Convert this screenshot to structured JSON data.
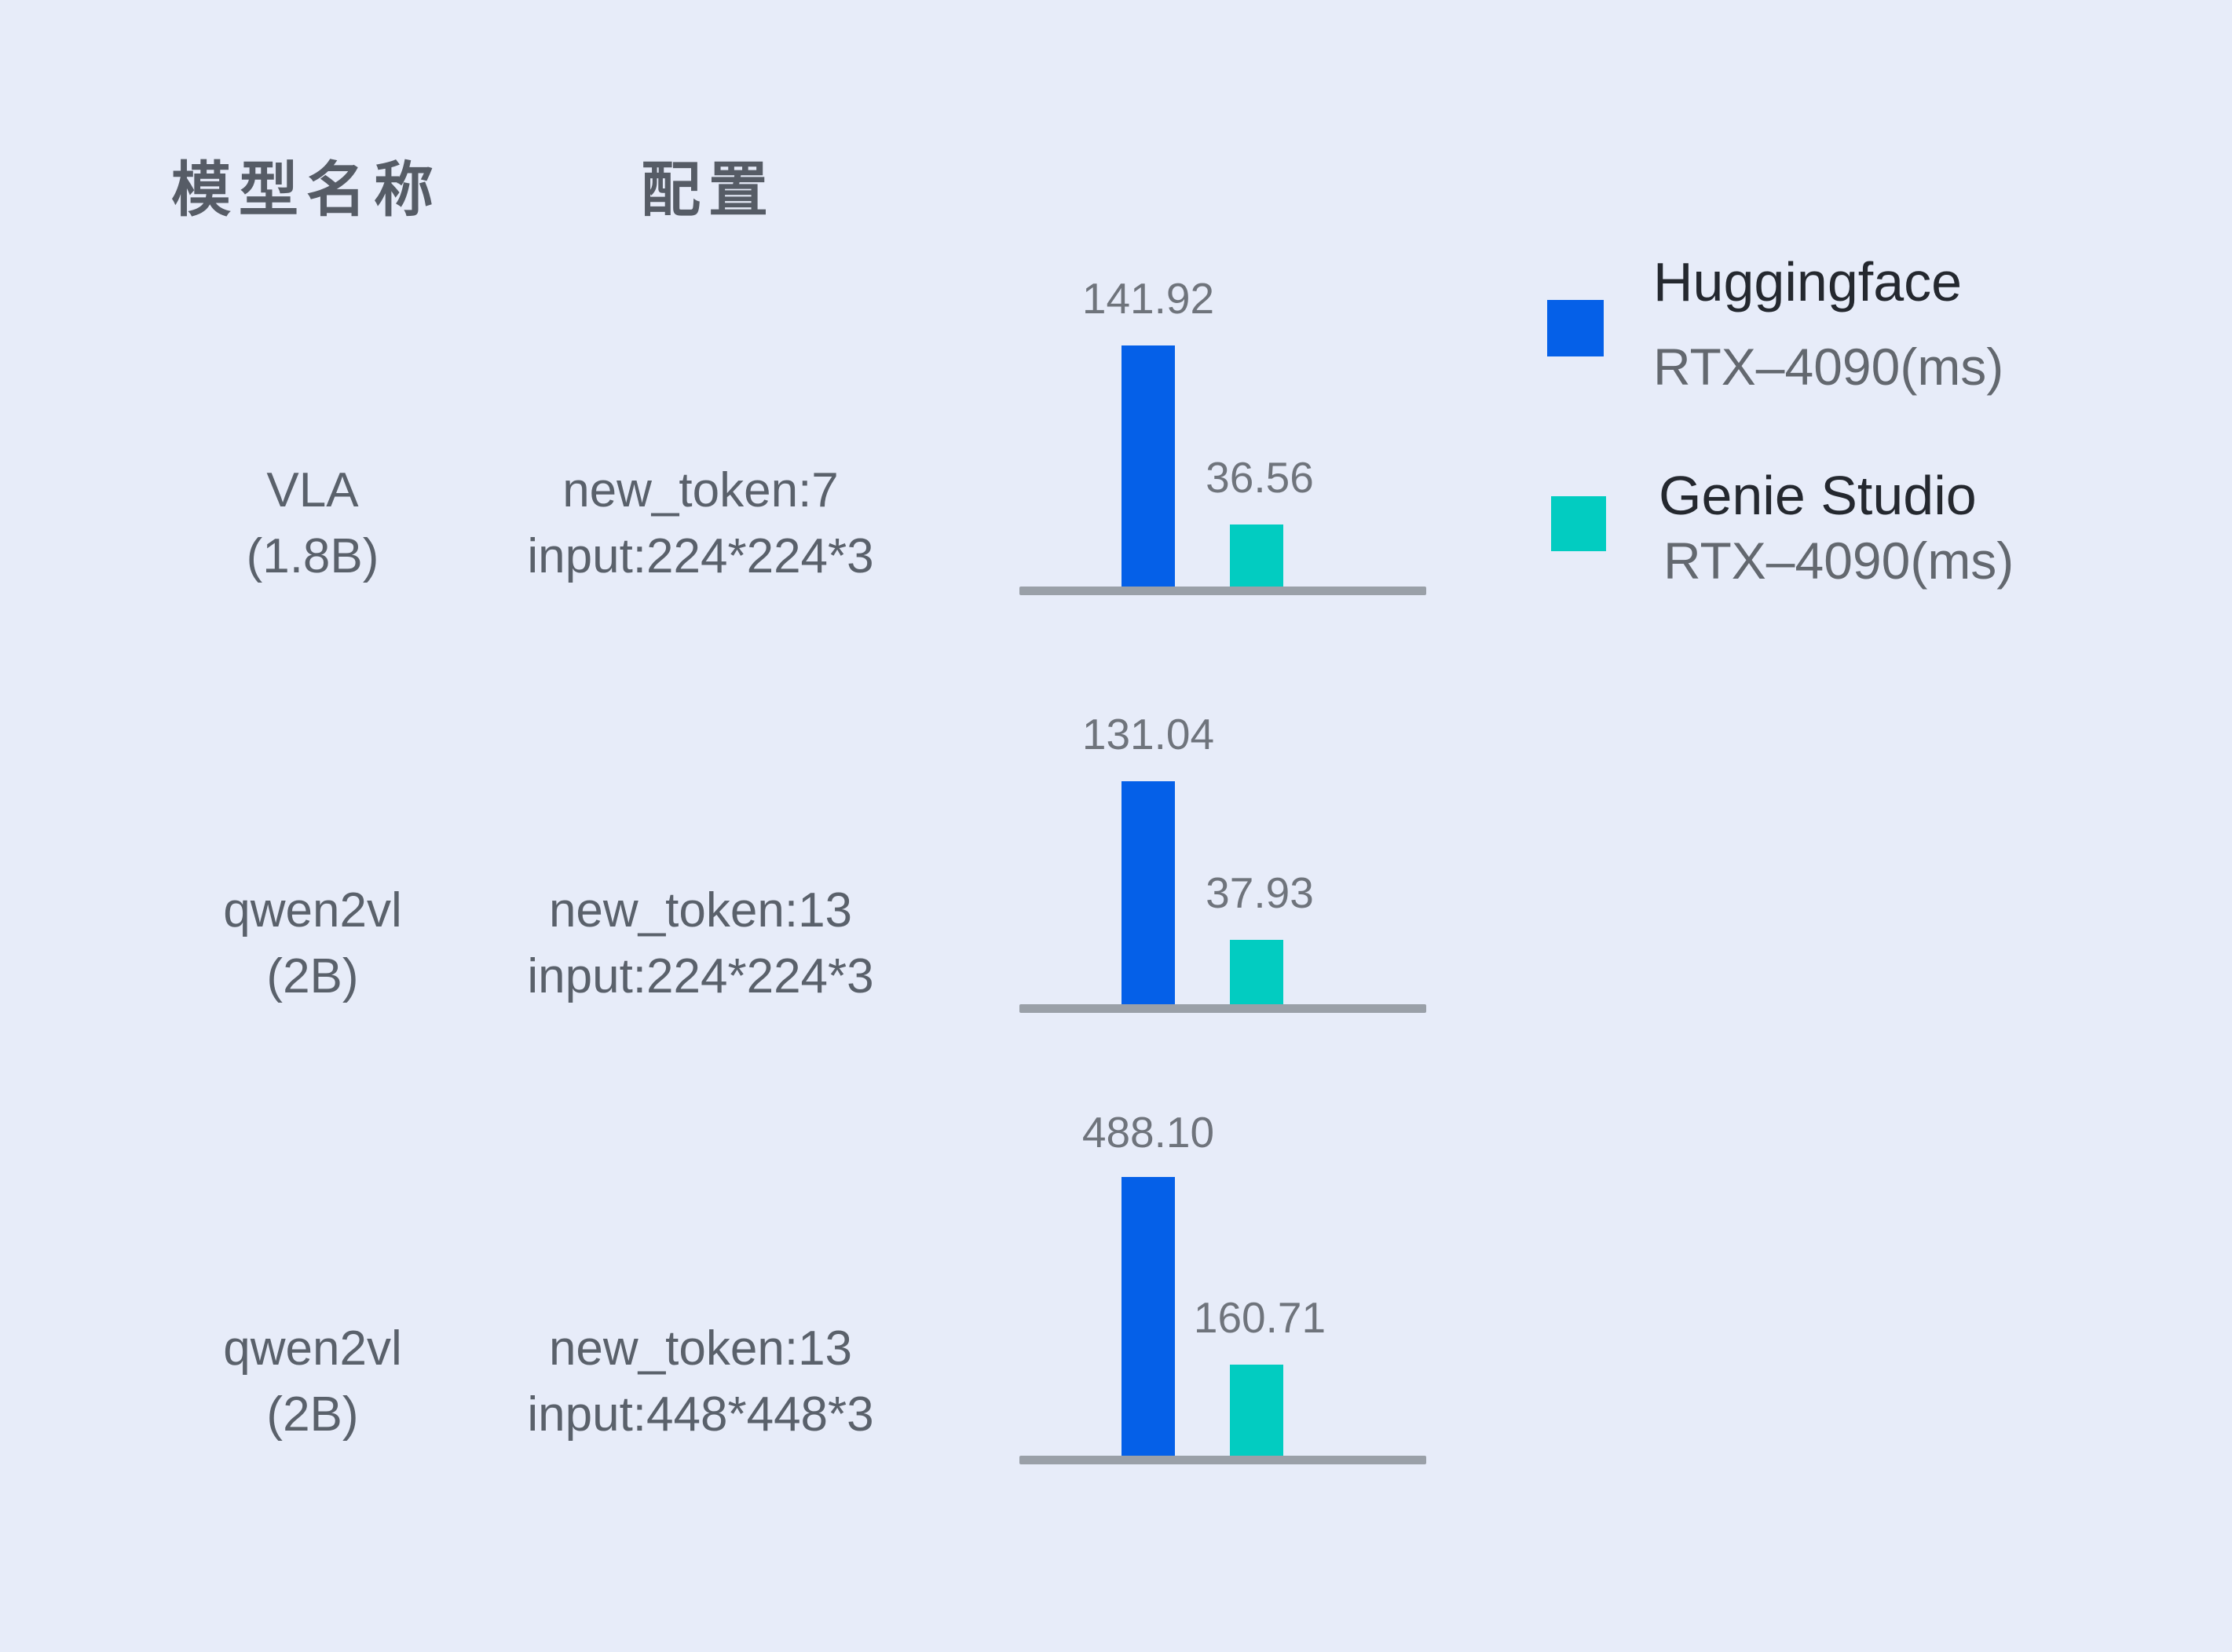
{
  "header": {
    "model_label": "模型名称",
    "config_label": "配置"
  },
  "rows": [
    {
      "model_line1": "VLA",
      "model_line2": "(1.8B)",
      "config_line1": "new_token:7",
      "config_line2": "input:224*224*3",
      "hf_value": "141.92",
      "gs_value": "36.56"
    },
    {
      "model_line1": "qwen2vl",
      "model_line2": "(2B)",
      "config_line1": "new_token:13",
      "config_line2": "input:224*224*3",
      "hf_value": "131.04",
      "gs_value": "37.93"
    },
    {
      "model_line1": "qwen2vl",
      "model_line2": "(2B)",
      "config_line1": "new_token:13",
      "config_line2": "input:448*448*3",
      "hf_value": "488.10",
      "gs_value": "160.71"
    }
  ],
  "legend": [
    {
      "name": "Huggingface",
      "device": "RTX–4090(ms)",
      "color": "#0560E8"
    },
    {
      "name": "Genie Studio",
      "device": "RTX–4090(ms)",
      "color": "#02CCC1"
    }
  ],
  "chart_data": {
    "type": "bar",
    "title": "",
    "unit": "ms",
    "column_headers": [
      "模型名称",
      "配置"
    ],
    "categories": [
      "VLA (1.8B) — new_token:7, input:224*224*3",
      "qwen2vl (2B) — new_token:13, input:224*224*3",
      "qwen2vl (2B) — new_token:13, input:448*448*3"
    ],
    "series": [
      {
        "name": "Huggingface RTX–4090(ms)",
        "color": "#0560E8",
        "values": [
          141.92,
          131.04,
          488.1
        ]
      },
      {
        "name": "Genie Studio RTX–4090(ms)",
        "color": "#02CCC1",
        "values": [
          36.56,
          37.93,
          160.71
        ]
      }
    ],
    "value_labels": [
      [
        "141.92",
        "36.56"
      ],
      [
        "131.04",
        "37.93"
      ],
      [
        "488.10",
        "160.71"
      ]
    ],
    "ylims": [
      [
        0,
        200
      ],
      [
        0,
        200
      ],
      [
        0,
        600
      ]
    ],
    "grid": false,
    "legend_position": "top-right"
  },
  "colors": {
    "background": "#E7ECF9",
    "axis_line": "#9AA0A8",
    "header_text": "#565C66",
    "row_text": "#5A616B",
    "value_text": "#6F747C",
    "legend_primary_text": "#24282F",
    "legend_secondary_text": "#63686F"
  }
}
